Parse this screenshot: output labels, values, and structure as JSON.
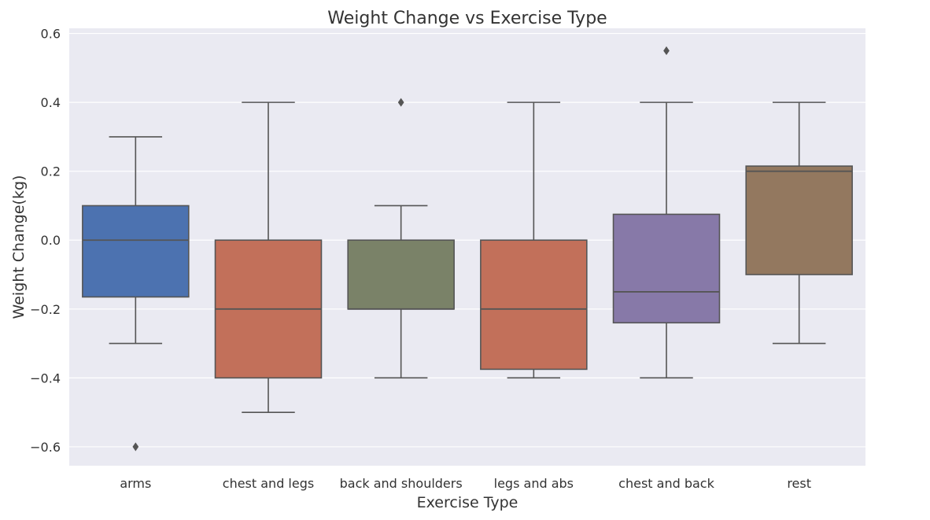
{
  "chart_data": {
    "type": "box",
    "title": "Weight Change vs Exercise Type",
    "xlabel": "Exercise Type",
    "ylabel": "Weight Change(kg)",
    "ylim": [
      -0.655,
      0.615
    ],
    "yticks": [
      0.6,
      0.4,
      0.2,
      0.0,
      -0.2,
      -0.4,
      -0.6
    ],
    "ytick_labels": [
      "0.6",
      "0.4",
      "0.2",
      "0.0",
      "−0.2",
      "−0.4",
      "−0.6"
    ],
    "grid": true,
    "background": "#eaeaf2",
    "categories": [
      "arms",
      "chest and legs",
      "back and shoulders",
      "legs and abs",
      "chest and back",
      "rest"
    ],
    "boxes": [
      {
        "category": "arms",
        "whisker_low": -0.3,
        "q1": -0.165,
        "median": 0.0,
        "q3": 0.1,
        "whisker_high": 0.3,
        "outliers": [
          -0.6
        ],
        "color": "#4c72b0"
      },
      {
        "category": "chest and legs",
        "whisker_low": -0.5,
        "q1": -0.4,
        "median": -0.2,
        "q3": 0.0,
        "whisker_high": 0.4,
        "outliers": [],
        "color": "#c2705a"
      },
      {
        "category": "back and shoulders",
        "whisker_low": -0.4,
        "q1": -0.2,
        "median": -0.2,
        "q3": 0.0,
        "whisker_high": 0.1,
        "outliers": [
          0.4
        ],
        "color": "#7a8268"
      },
      {
        "category": "legs and abs",
        "whisker_low": -0.4,
        "q1": -0.375,
        "median": -0.2,
        "q3": 0.0,
        "whisker_high": 0.4,
        "outliers": [],
        "color": "#c2705a"
      },
      {
        "category": "chest and back",
        "whisker_low": -0.4,
        "q1": -0.24,
        "median": -0.15,
        "q3": 0.075,
        "whisker_high": 0.4,
        "outliers": [
          0.55
        ],
        "color": "#8779a8"
      },
      {
        "category": "rest",
        "whisker_low": -0.3,
        "q1": -0.1,
        "median": 0.2,
        "q3": 0.215,
        "whisker_high": 0.4,
        "outliers": [],
        "color": "#93785f"
      }
    ],
    "line_color": "#555555"
  }
}
